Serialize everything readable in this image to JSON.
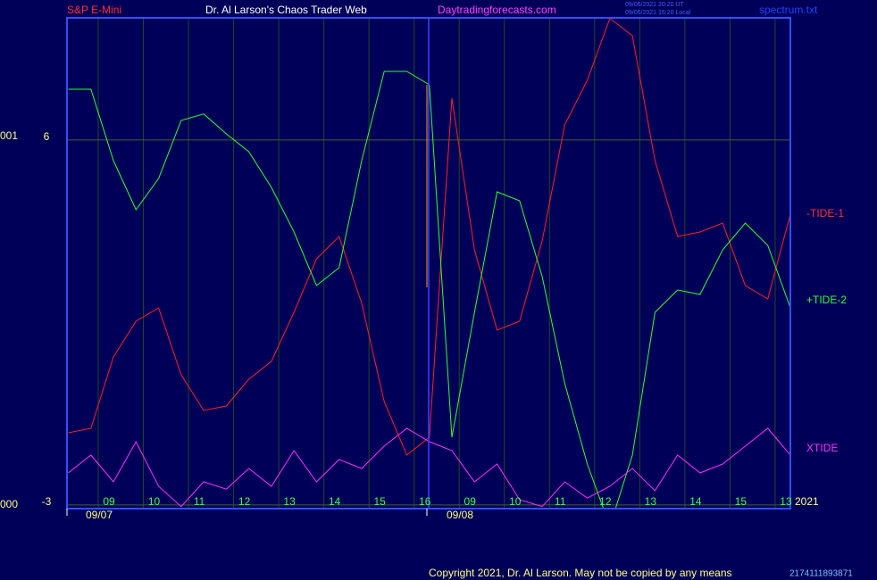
{
  "chart_data": {
    "type": "line",
    "instrument": "S&P E-Mini",
    "title": "Dr. Al Larson's Chaos Trader Web",
    "site": "Daytradingforecasts.com",
    "timestamps": [
      "09/06/2021 20:20 UT",
      "09/06/2021 15:20 Local"
    ],
    "file": "spectrum.txt",
    "left_labels": [
      "000",
      "001"
    ],
    "dates": [
      "09/07",
      "09/08"
    ],
    "year": "2021",
    "copyright": "Copyright 2021, Dr. Al Larson. May not be copied by any means",
    "footer_code": "2174111893871",
    "x": [
      -0.9,
      -0.4,
      0.1,
      0.6,
      1.1,
      1.6,
      2.1,
      2.6,
      3.1,
      3.6,
      4.1,
      4.6,
      5.1,
      5.6,
      6.1,
      6.6,
      7.1,
      7.6,
      8.1,
      8.6,
      9.1,
      9.6,
      10.1,
      10.6,
      11.1,
      11.6,
      12.1,
      12.6,
      13.1,
      13.6,
      14.1,
      14.6,
      15.1
    ],
    "series": [
      {
        "name": "-TIDE-1",
        "color": "#ff2020",
        "values": [
          -1.22,
          -1.11,
          0.65,
          1.53,
          1.86,
          0.21,
          -0.67,
          -0.56,
          0.1,
          0.54,
          1.75,
          3.07,
          3.62,
          1.97,
          -0.45,
          -1.77,
          -1.33,
          7.03,
          3.29,
          1.31,
          1.53,
          3.51,
          6.37,
          7.47,
          9.0,
          8.57,
          5.49,
          3.62,
          3.73,
          3.95,
          2.41,
          2.08,
          4.17
        ]
      },
      {
        "name": "+TIDE-2",
        "color": "#30ff30",
        "values": [
          7.25,
          7.25,
          5.49,
          4.28,
          5.05,
          6.48,
          6.64,
          6.15,
          5.71,
          4.83,
          3.73,
          2.41,
          2.85,
          5.49,
          7.69,
          7.69,
          7.36,
          -1.33,
          1.75,
          4.72,
          4.5,
          2.63,
          0.0,
          -1.99,
          -3.53,
          -1.77,
          1.75,
          2.3,
          2.19,
          3.29,
          3.95,
          3.4,
          1.86
        ]
      },
      {
        "name": "XTIDE",
        "color": "#ff30ff",
        "values": [
          -2.21,
          -1.77,
          -2.43,
          -1.44,
          -2.54,
          -3.04,
          -2.43,
          -2.61,
          -2.1,
          -2.54,
          -1.66,
          -2.43,
          -1.88,
          -2.1,
          -1.55,
          -1.11,
          -1.44,
          -1.66,
          -2.43,
          -1.99,
          -2.87,
          -3.04,
          -2.43,
          -2.83,
          -2.54,
          -2.1,
          -2.65,
          -1.77,
          -2.21,
          -1.99,
          -1.55,
          -1.11,
          -1.77
        ]
      }
    ],
    "xlim": [
      -0.93,
      15.1
    ],
    "ylim": [
      -3.09,
      9.01
    ],
    "xticks": [
      {
        "value": 0,
        "label": "09"
      },
      {
        "value": 1,
        "label": "10"
      },
      {
        "value": 2,
        "label": "11"
      },
      {
        "value": 3,
        "label": "12"
      },
      {
        "value": 4,
        "label": "13"
      },
      {
        "value": 5,
        "label": "14"
      },
      {
        "value": 6,
        "label": "15"
      },
      {
        "value": 7,
        "label": "16"
      },
      {
        "value": 8,
        "label": "09"
      },
      {
        "value": 9,
        "label": "10"
      },
      {
        "value": 10,
        "label": "11"
      },
      {
        "value": 11,
        "label": "12"
      },
      {
        "value": 12,
        "label": "13"
      },
      {
        "value": 13,
        "label": "14"
      },
      {
        "value": 14,
        "label": "15"
      },
      {
        "value": 15,
        "label": "13"
      }
    ],
    "yticks": [
      -3,
      6
    ],
    "grid": true
  }
}
